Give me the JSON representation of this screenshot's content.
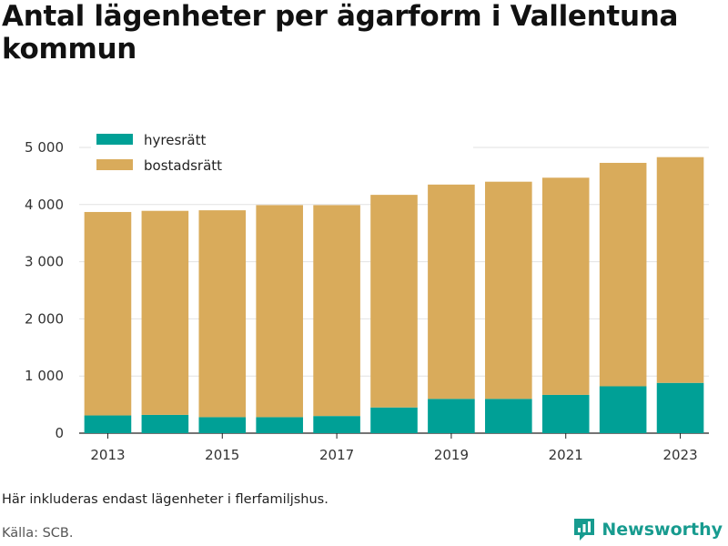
{
  "title": "Antal lägenheter per ägarform i Vallentuna kommun",
  "note": "Här inkluderas endast lägenheter i flerfamiljshus.",
  "source": "Källa: SCB.",
  "brand": {
    "name": "Newsworthy",
    "icon": "newsworthy-logo-icon",
    "color": "#179b8f"
  },
  "chart_data": {
    "type": "bar",
    "stacked": true,
    "categories": [
      "2013",
      "2014",
      "2015",
      "2016",
      "2017",
      "2018",
      "2019",
      "2020",
      "2021",
      "2022",
      "2023"
    ],
    "x_tick_labels": [
      "2013",
      "2015",
      "2017",
      "2019",
      "2021",
      "2023"
    ],
    "series": [
      {
        "name": "hyresrätt",
        "color": "#00a096",
        "values": [
          310,
          320,
          280,
          280,
          300,
          450,
          600,
          600,
          670,
          820,
          880
        ]
      },
      {
        "name": "bostadsrätt",
        "color": "#d9ab5b",
        "values": [
          3560,
          3570,
          3620,
          3710,
          3690,
          3720,
          3750,
          3800,
          3800,
          3910,
          3950
        ]
      }
    ],
    "ylim": [
      0,
      5000
    ],
    "y_ticks": [
      0,
      1000,
      2000,
      3000,
      4000,
      5000
    ],
    "y_tick_labels": [
      "0",
      "1 000",
      "2 000",
      "3 000",
      "4 000",
      "5 000"
    ],
    "grid": true,
    "legend": "top-left"
  }
}
